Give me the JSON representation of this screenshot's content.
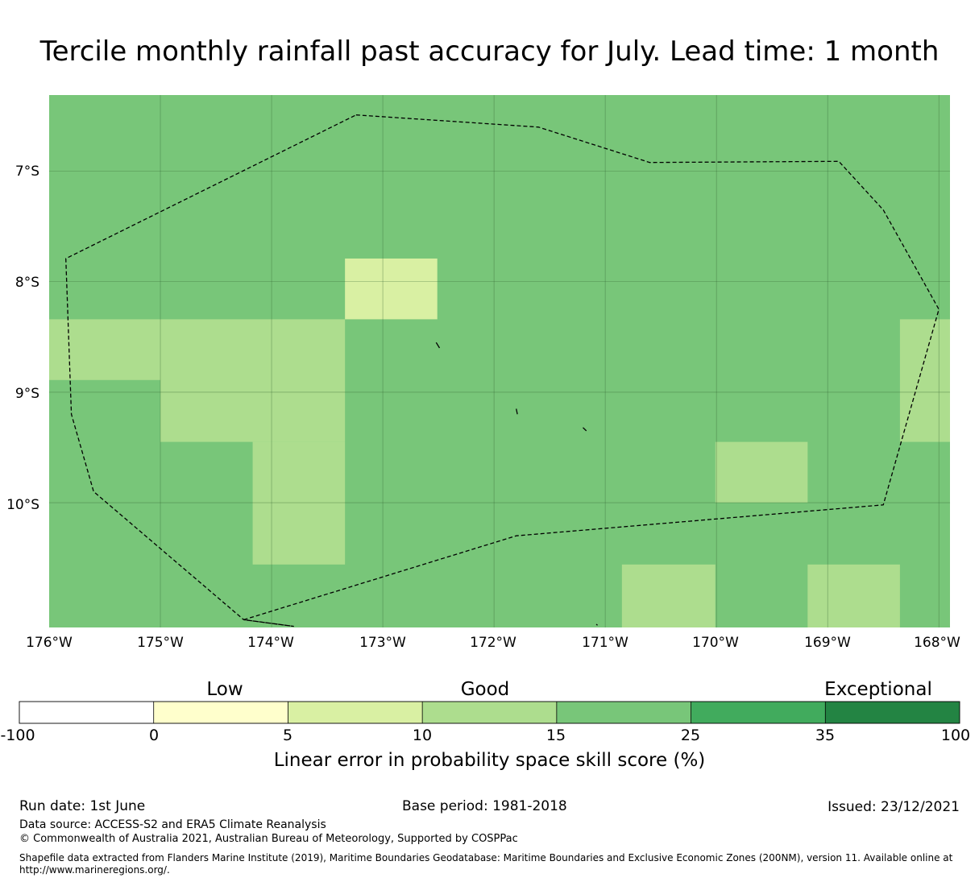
{
  "title": "Tercile monthly rainfall past accuracy for July. Lead time: 1 month",
  "lat_ticks": [
    "7°S",
    "8°S",
    "9°S",
    "10°S"
  ],
  "lon_ticks": [
    "176°W",
    "175°W",
    "174°W",
    "173°W",
    "172°W",
    "171°W",
    "170°W",
    "169°W",
    "168°W"
  ],
  "colorbar": {
    "categories": [
      "Low",
      "Good",
      "Exceptional"
    ],
    "ticks": [
      "-100",
      "0",
      "5",
      "10",
      "15",
      "25",
      "35",
      "100"
    ],
    "bin_colors": [
      "#ffffff",
      "#ffffcc",
      "#d9f0a3",
      "#addd8e",
      "#78c679",
      "#41ab5d",
      "#238443"
    ],
    "label": "Linear error in probability space skill score (%)"
  },
  "chart_data": {
    "type": "heatmap",
    "title": "Tercile monthly rainfall past accuracy for July. Lead time: 1 month",
    "x_range": [
      -176.0,
      -167.9
    ],
    "y_range": [
      -11.13,
      -6.31
    ],
    "background_bin": "15-25",
    "cells": [
      {
        "lon": [
          -173.34,
          -172.51
        ],
        "lat": [
          -8.34,
          -7.79
        ],
        "bin": "5-10"
      },
      {
        "lon": [
          -176.0,
          -175.0
        ],
        "lat": [
          -8.89,
          -8.34
        ],
        "bin": "10-15"
      },
      {
        "lon": [
          -175.0,
          -173.34
        ],
        "lat": [
          -9.45,
          -8.34
        ],
        "bin": "10-15"
      },
      {
        "lon": [
          -174.17,
          -173.34
        ],
        "lat": [
          -10.56,
          -9.45
        ],
        "bin": "10-15"
      },
      {
        "lon": [
          -170.01,
          -169.18
        ],
        "lat": [
          -10.0,
          -9.45
        ],
        "bin": "10-15"
      },
      {
        "lon": [
          -168.35,
          -167.9
        ],
        "lat": [
          -9.45,
          -8.34
        ],
        "bin": "10-15"
      },
      {
        "lon": [
          -170.85,
          -170.01
        ],
        "lat": [
          -11.13,
          -10.56
        ],
        "bin": "10-15"
      },
      {
        "lon": [
          -169.18,
          -168.35
        ],
        "lat": [
          -11.13,
          -10.56
        ],
        "bin": "10-15"
      }
    ],
    "boundary": [
      [
        -173.24,
        -6.49
      ],
      [
        -171.6,
        -6.6
      ],
      [
        -170.6,
        -6.92
      ],
      [
        -168.9,
        -6.91
      ],
      [
        -168.5,
        -7.35
      ],
      [
        -168.0,
        -8.25
      ],
      [
        -168.5,
        -10.02
      ],
      [
        -171.8,
        -10.3
      ],
      [
        -174.25,
        -11.06
      ],
      [
        -173.8,
        -11.12
      ],
      [
        -174.25,
        -11.06
      ],
      [
        -175.6,
        -9.9
      ],
      [
        -175.8,
        -9.2
      ],
      [
        -175.85,
        -7.79
      ],
      [
        -173.24,
        -6.49
      ]
    ],
    "islands": [
      [
        [
          -172.52,
          -8.55
        ],
        [
          -172.49,
          -8.6
        ]
      ],
      [
        [
          -171.8,
          -9.15
        ],
        [
          -171.79,
          -9.2
        ]
      ],
      [
        [
          -171.2,
          -9.32
        ],
        [
          -171.17,
          -9.35
        ]
      ],
      [
        [
          -171.08,
          -11.1
        ],
        [
          -171.07,
          -11.11
        ]
      ]
    ]
  },
  "footer": {
    "run_date": "Run date: 1st June",
    "base_period": "Base period: 1981-2018",
    "issued": "Issued: 23/12/2021",
    "data_source": "Data source: ACCESS-S2 and ERA5 Climate Reanalysis",
    "copyright": "© Commonwealth of Australia 2021, Australian Bureau of Meteorology, Supported by COSPPac",
    "shapefile_line1": "Shapefile data extracted from Flanders Marine Institute (2019), Maritime Boundaries Geodatabase: Maritime Boundaries and Exclusive Economic Zones (200NM), version 11. Available online at",
    "shapefile_line2": "http://www.marineregions.org/."
  }
}
